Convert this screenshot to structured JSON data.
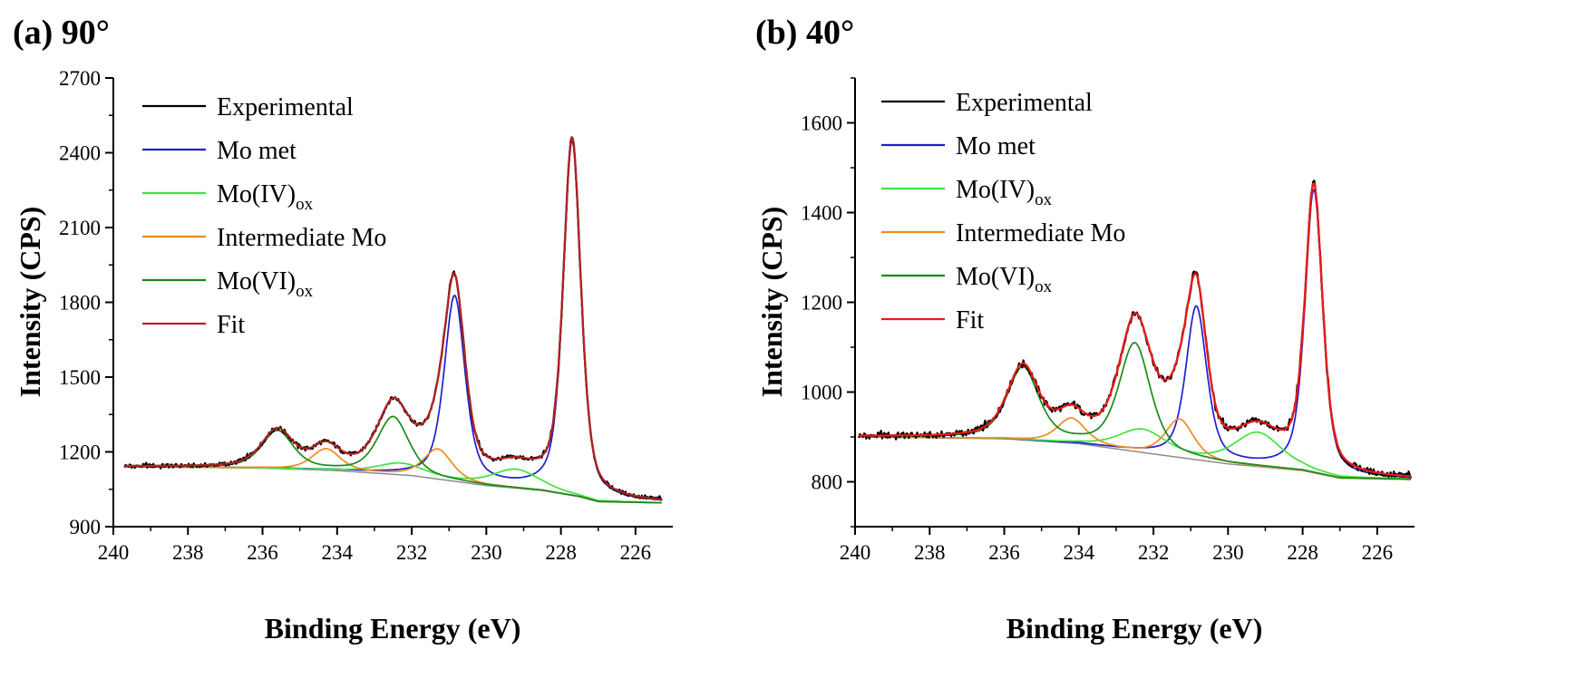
{
  "colors": {
    "Experimental": "#000000",
    "Mo met": "#1f1fcf",
    "Mo(IV)_ox": "#3ee53e",
    "Intermediate Mo": "#ef8a1e",
    "Mo(VI)_ox": "#1a8c1a",
    "Fit_a": "#b22222",
    "Fit_b": "#f01818",
    "background": "#8c8c8c"
  },
  "chart_data": [
    {
      "type": "line",
      "panel_label": "(a) 90°",
      "xlabel": "Binding Energy (eV)",
      "ylabel": "Intensity (CPS)",
      "xlim": [
        240,
        225
      ],
      "ylim": [
        900,
        2700
      ],
      "xticks": [
        240,
        238,
        236,
        234,
        232,
        230,
        228,
        226
      ],
      "yticks": [
        900,
        1200,
        1500,
        1800,
        2100,
        2400,
        2700
      ],
      "legend": [
        {
          "key": "Experimental",
          "label": "Experimental",
          "sub": ""
        },
        {
          "key": "Mo met",
          "label": "Mo met",
          "sub": ""
        },
        {
          "key": "Mo(IV)_ox",
          "label": "Mo(IV)",
          "sub": "ox"
        },
        {
          "key": "Intermediate Mo",
          "label": "Intermediate Mo",
          "sub": ""
        },
        {
          "key": "Mo(VI)_ox",
          "label": "Mo(VI)",
          "sub": "ox"
        },
        {
          "key": "Fit_a",
          "label": "Fit",
          "sub": ""
        }
      ],
      "data_range": [
        239.7,
        225.3
      ],
      "background_points": [
        [
          239.7,
          1140
        ],
        [
          236,
          1135
        ],
        [
          234,
          1125
        ],
        [
          232,
          1105
        ],
        [
          230,
          1065
        ],
        [
          228.5,
          1045
        ],
        [
          227.5,
          1020
        ],
        [
          227,
          1000
        ],
        [
          225.3,
          995
        ]
      ],
      "series": [
        {
          "name": "Mo met",
          "color_key": "Mo met",
          "peaks": [
            {
              "center": 227.7,
              "height": 1420,
              "width": 0.28
            },
            {
              "center": 230.85,
              "height": 740,
              "width": 0.33
            }
          ]
        },
        {
          "name": "Mo(IV)_ox",
          "color_key": "Mo(IV)_ox",
          "peaks": [
            {
              "center": 229.2,
              "height": 75,
              "width": 0.75
            },
            {
              "center": 232.3,
              "height": 45,
              "width": 0.75
            }
          ]
        },
        {
          "name": "Intermediate Mo",
          "color_key": "Intermediate Mo",
          "peaks": [
            {
              "center": 231.3,
              "height": 120,
              "width": 0.45
            },
            {
              "center": 234.3,
              "height": 85,
              "width": 0.45
            }
          ]
        },
        {
          "name": "Mo(VI)_ox",
          "color_key": "Mo(VI)_ox",
          "peaks": [
            {
              "center": 232.5,
              "height": 230,
              "width": 0.5
            },
            {
              "center": 235.6,
              "height": 150,
              "width": 0.5
            }
          ]
        },
        {
          "name": "Fit",
          "color_key": "Fit_a",
          "sum": true
        },
        {
          "name": "Experimental",
          "color_key": "Experimental",
          "sum": true,
          "noise": 8
        }
      ]
    },
    {
      "type": "line",
      "panel_label": "(b) 40°",
      "xlabel": "Binding Energy (eV)",
      "ylabel": "Intensity (CPS)",
      "xlim": [
        240,
        225
      ],
      "ylim": [
        700,
        1700
      ],
      "xticks": [
        240,
        238,
        236,
        234,
        232,
        230,
        228,
        226
      ],
      "yticks": [
        800,
        1000,
        1200,
        1400,
        1600
      ],
      "legend": [
        {
          "key": "Experimental",
          "label": "Experimental",
          "sub": ""
        },
        {
          "key": "Mo met",
          "label": "Mo met",
          "sub": ""
        },
        {
          "key": "Mo(IV)_ox",
          "label": "Mo(IV)",
          "sub": "ox"
        },
        {
          "key": "Intermediate Mo",
          "label": "Intermediate Mo",
          "sub": ""
        },
        {
          "key": "Mo(VI)_ox",
          "label": "Mo(VI)",
          "sub": "ox"
        },
        {
          "key": "Fit_b",
          "label": "Fit",
          "sub": ""
        }
      ],
      "data_range": [
        239.9,
        225.1
      ],
      "background_points": [
        [
          239.9,
          900
        ],
        [
          236,
          896
        ],
        [
          234,
          885
        ],
        [
          232,
          862
        ],
        [
          230,
          840
        ],
        [
          228,
          825
        ],
        [
          227,
          808
        ],
        [
          225.1,
          805
        ]
      ],
      "series": [
        {
          "name": "Mo met",
          "color_key": "Mo met",
          "peaks": [
            {
              "center": 227.7,
              "height": 630,
              "width": 0.28
            },
            {
              "center": 230.85,
              "height": 340,
              "width": 0.33
            }
          ]
        },
        {
          "name": "Mo(IV)_ox",
          "color_key": "Mo(IV)_ox",
          "peaks": [
            {
              "center": 229.2,
              "height": 75,
              "width": 0.75
            },
            {
              "center": 232.3,
              "height": 50,
              "width": 0.75
            }
          ]
        },
        {
          "name": "Intermediate Mo",
          "color_key": "Intermediate Mo",
          "peaks": [
            {
              "center": 231.3,
              "height": 85,
              "width": 0.45
            },
            {
              "center": 234.2,
              "height": 55,
              "width": 0.45
            }
          ]
        },
        {
          "name": "Mo(VI)_ox",
          "color_key": "Mo(VI)_ox",
          "peaks": [
            {
              "center": 232.5,
              "height": 240,
              "width": 0.5
            },
            {
              "center": 235.5,
              "height": 160,
              "width": 0.5
            }
          ]
        },
        {
          "name": "Fit",
          "color_key": "Fit_b",
          "sum": true
        },
        {
          "name": "Experimental",
          "color_key": "Experimental",
          "sum": true,
          "noise": 7
        }
      ]
    }
  ]
}
